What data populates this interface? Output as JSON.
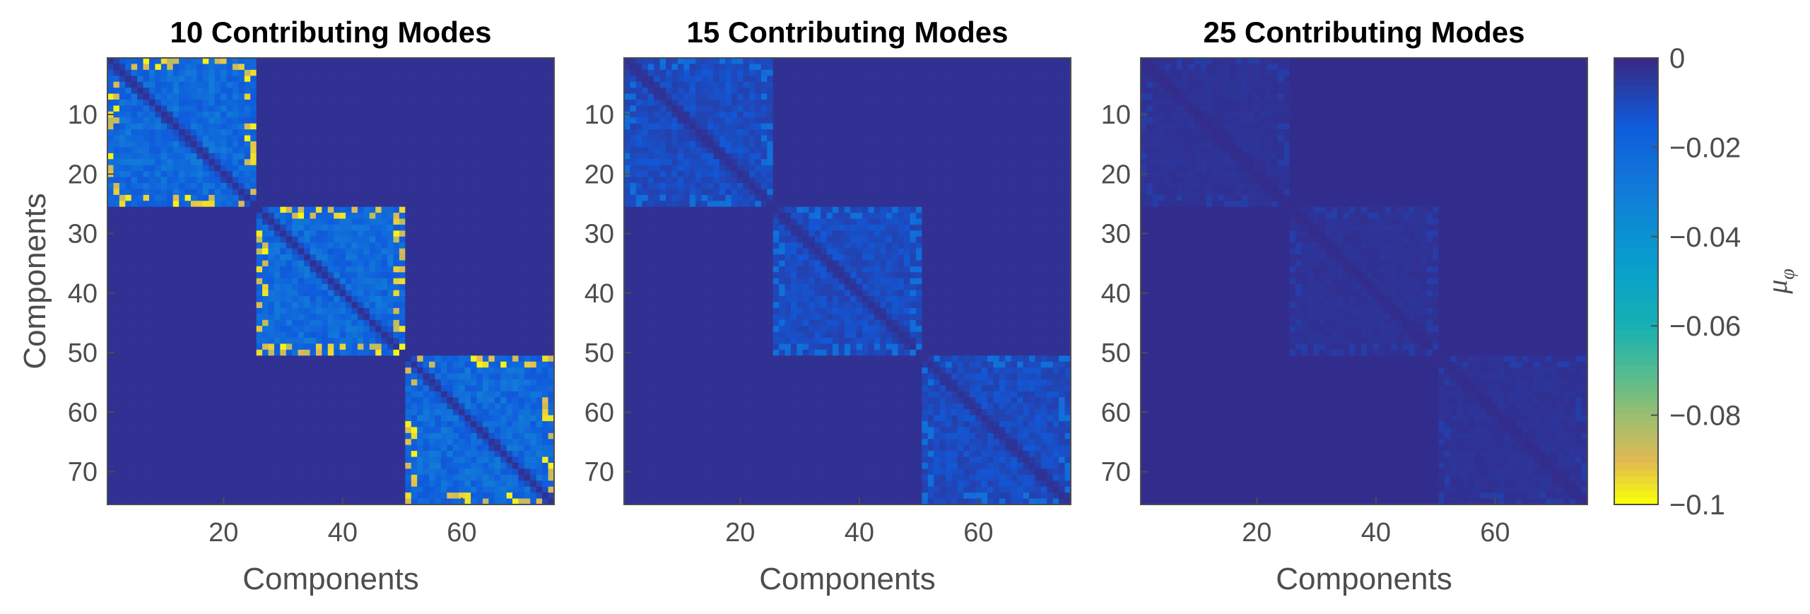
{
  "chart_data": {
    "type": "heatmap",
    "n": 75,
    "block_boundaries": [
      25,
      50
    ],
    "panels": [
      {
        "title": "10 Contributing Modes",
        "xlabel": "Components",
        "ylabel": "Components",
        "xticks": [
          20,
          40,
          60
        ],
        "yticks": [
          10,
          20,
          30,
          40,
          50,
          60,
          70
        ],
        "xlim": [
          1,
          75
        ],
        "ylim": [
          1,
          75
        ],
        "diag_block_min": -0.1,
        "diag_block_typical": -0.025,
        "offdiag_block_typical": -0.012,
        "cross_block_value": -0.002
      },
      {
        "title": "15 Contributing Modes",
        "xlabel": "Components",
        "ylabel": "",
        "xticks": [
          20,
          40,
          60
        ],
        "yticks": [
          10,
          20,
          30,
          40,
          50,
          60,
          70
        ],
        "xlim": [
          1,
          75
        ],
        "ylim": [
          1,
          75
        ],
        "diag_block_min": -0.025,
        "diag_block_typical": -0.012,
        "offdiag_block_typical": -0.007,
        "cross_block_value": -0.002
      },
      {
        "title": "25 Contributing Modes",
        "xlabel": "Components",
        "ylabel": "",
        "xticks": [
          20,
          40,
          60
        ],
        "yticks": [
          10,
          20,
          30,
          40,
          50,
          60,
          70
        ],
        "xlim": [
          1,
          75
        ],
        "ylim": [
          1,
          75
        ],
        "diag_block_min": -0.006,
        "diag_block_typical": -0.003,
        "offdiag_block_typical": -0.002,
        "cross_block_value": -0.001
      }
    ],
    "colorbar": {
      "label": "μφ",
      "label_main": "μ",
      "label_sub": "φ",
      "range": [
        -0.1,
        0
      ],
      "ticks": [
        0,
        -0.02,
        -0.04,
        -0.06,
        -0.08,
        -0.1
      ],
      "tick_labels": [
        "0",
        "−0.02",
        "−0.04",
        "−0.06",
        "−0.08",
        "−0.1"
      ],
      "colormap": "parula"
    }
  }
}
